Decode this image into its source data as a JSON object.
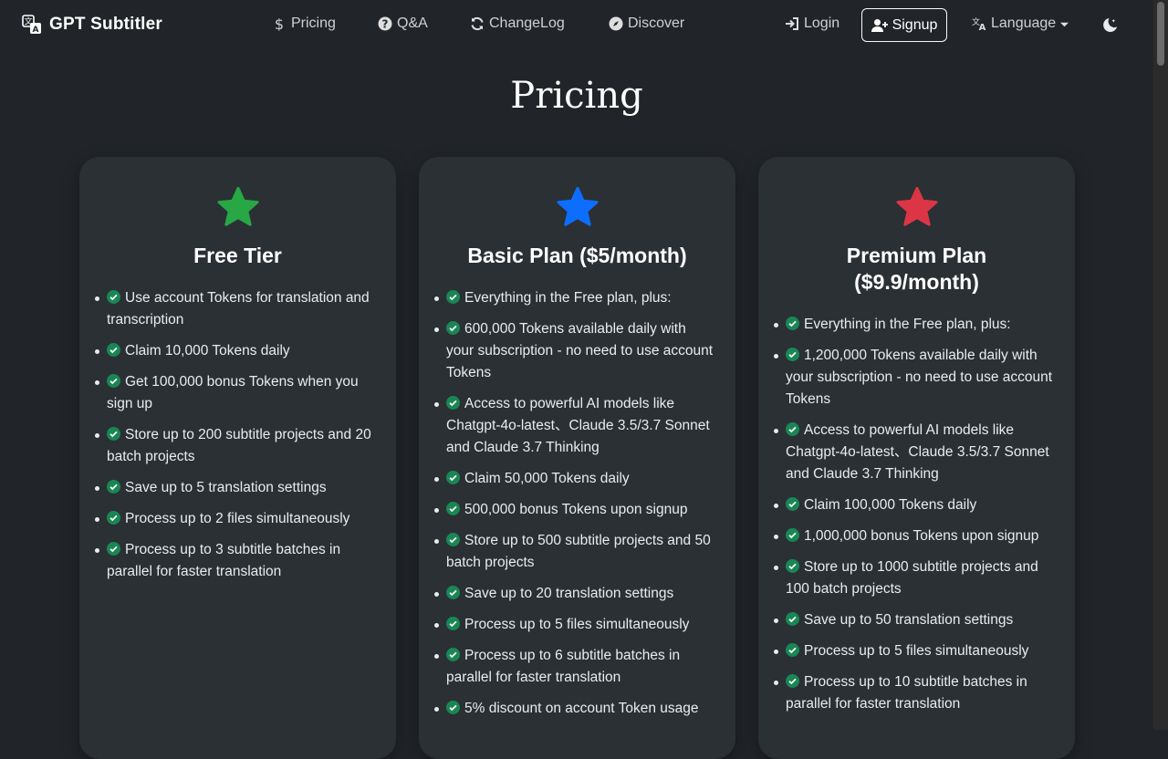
{
  "brand": {
    "name": "GPT Subtitler"
  },
  "nav": {
    "pricing": "Pricing",
    "qa": "Q&A",
    "changelog": "ChangeLog",
    "discover": "Discover",
    "login": "Login",
    "signup": "Signup",
    "language": "Language"
  },
  "page": {
    "title": "Pricing"
  },
  "colors": {
    "free": "#28a745",
    "basic": "#0d6efd",
    "premium": "#dc3545",
    "check": "#198754"
  },
  "plans": [
    {
      "name": "Free Tier",
      "features": [
        "Use account Tokens for translation and transcription",
        "Claim 10,000 Tokens daily",
        "Get 100,000 bonus Tokens when you sign up",
        "Store up to 200 subtitle projects and 20 batch projects",
        "Save up to 5 translation settings",
        "Process up to 2 files simultaneously",
        "Process up to 3 subtitle batches in parallel for faster translation"
      ]
    },
    {
      "name": "Basic Plan ($5/month)",
      "features": [
        "Everything in the Free plan, plus:",
        "600,000 Tokens available daily with your subscription - no need to use account Tokens",
        "Access to powerful AI models like Chatgpt-4o-latest、Claude 3.5/3.7 Sonnet and Claude 3.7 Thinking",
        "Claim 50,000 Tokens daily",
        "500,000 bonus Tokens upon signup",
        "Store up to 500 subtitle projects and 50 batch projects",
        "Save up to 20 translation settings",
        "Process up to 5 files simultaneously",
        "Process up to 6 subtitle batches in parallel for faster translation",
        "5% discount on account Token usage"
      ]
    },
    {
      "name": "Premium Plan ($9.9/month)",
      "features": [
        "Everything in the Free plan, plus:",
        "1,200,000 Tokens available daily with your subscription - no need to use account Tokens",
        "Access to powerful AI models like Chatgpt-4o-latest、Claude 3.5/3.7 Sonnet and Claude 3.7 Thinking",
        "Claim 100,000 Tokens daily",
        "1,000,000 bonus Tokens upon signup",
        "Store up to 1000 subtitle projects and 100 batch projects",
        "Save up to 50 translation settings",
        "Process up to 5 files simultaneously",
        "Process up to 10 subtitle batches in parallel for faster translation"
      ]
    }
  ]
}
